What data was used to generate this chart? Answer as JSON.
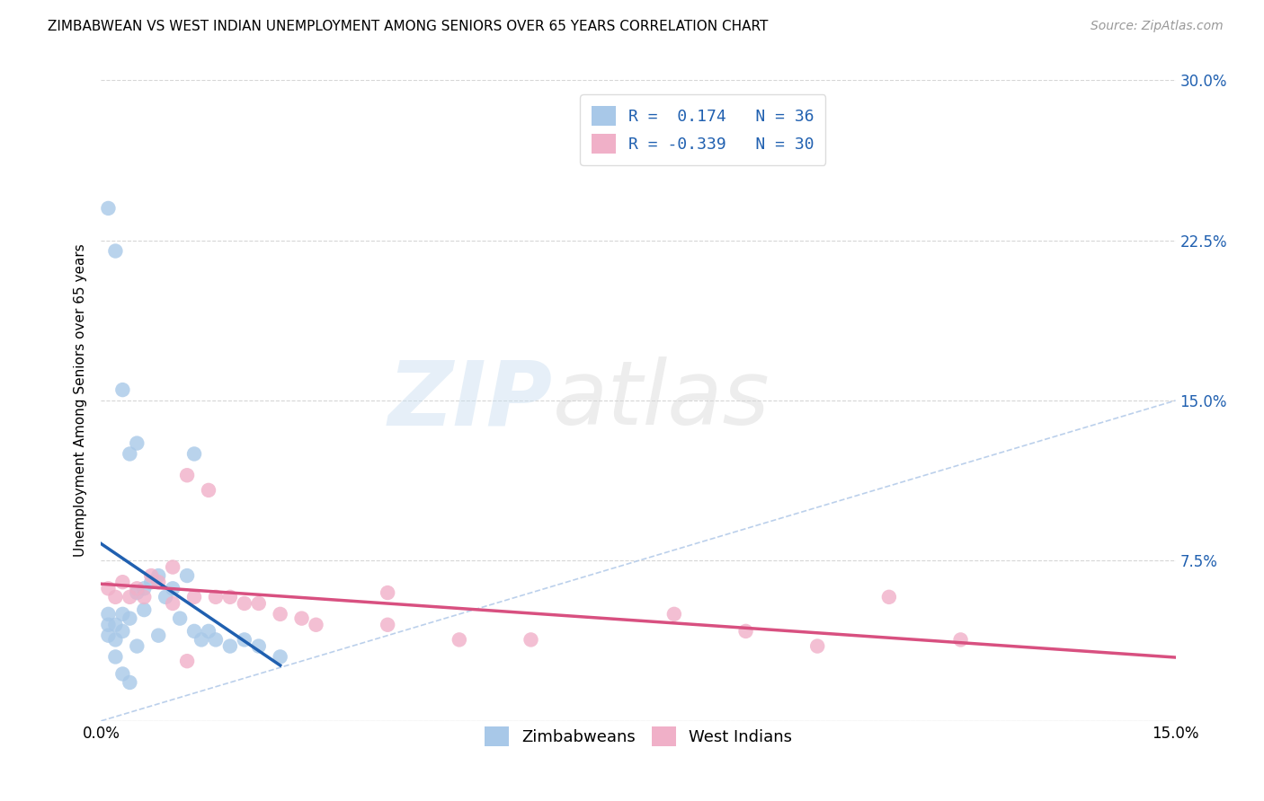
{
  "title": "ZIMBABWEAN VS WEST INDIAN UNEMPLOYMENT AMONG SENIORS OVER 65 YEARS CORRELATION CHART",
  "source": "Source: ZipAtlas.com",
  "ylabel": "Unemployment Among Seniors over 65 years",
  "xlim": [
    0.0,
    0.15
  ],
  "ylim": [
    0.0,
    0.3
  ],
  "xticks": [
    0.0,
    0.05,
    0.1,
    0.15
  ],
  "yticks": [
    0.0,
    0.075,
    0.15,
    0.225,
    0.3
  ],
  "xtick_labels": [
    "0.0%",
    "",
    "",
    "15.0%"
  ],
  "ytick_labels_left": [
    "",
    "",
    "",
    "",
    ""
  ],
  "ytick_labels_right": [
    "",
    "7.5%",
    "15.0%",
    "22.5%",
    "30.0%"
  ],
  "watermark_zip": "ZIP",
  "watermark_atlas": "atlas",
  "zim_color": "#a8c8e8",
  "wi_color": "#f0b0c8",
  "zim_line_color": "#2060b0",
  "wi_line_color": "#d85080",
  "diagonal_color": "#b0c8e8",
  "zim_x": [
    0.001,
    0.001,
    0.001,
    0.002,
    0.002,
    0.002,
    0.003,
    0.003,
    0.003,
    0.004,
    0.004,
    0.005,
    0.005,
    0.006,
    0.006,
    0.007,
    0.008,
    0.008,
    0.009,
    0.01,
    0.011,
    0.012,
    0.013,
    0.014,
    0.015,
    0.016,
    0.018,
    0.02,
    0.022,
    0.025,
    0.001,
    0.002,
    0.003,
    0.004,
    0.005,
    0.013
  ],
  "zim_y": [
    0.05,
    0.045,
    0.04,
    0.045,
    0.038,
    0.03,
    0.05,
    0.042,
    0.022,
    0.048,
    0.018,
    0.06,
    0.035,
    0.062,
    0.052,
    0.065,
    0.068,
    0.04,
    0.058,
    0.062,
    0.048,
    0.068,
    0.042,
    0.038,
    0.042,
    0.038,
    0.035,
    0.038,
    0.035,
    0.03,
    0.24,
    0.22,
    0.155,
    0.125,
    0.13,
    0.125
  ],
  "wi_x": [
    0.001,
    0.002,
    0.003,
    0.004,
    0.005,
    0.006,
    0.007,
    0.008,
    0.01,
    0.012,
    0.013,
    0.015,
    0.016,
    0.018,
    0.02,
    0.022,
    0.025,
    0.028,
    0.03,
    0.04,
    0.05,
    0.06,
    0.08,
    0.09,
    0.1,
    0.11,
    0.12,
    0.04,
    0.01,
    0.012
  ],
  "wi_y": [
    0.062,
    0.058,
    0.065,
    0.058,
    0.062,
    0.058,
    0.068,
    0.065,
    0.072,
    0.115,
    0.058,
    0.108,
    0.058,
    0.058,
    0.055,
    0.055,
    0.05,
    0.048,
    0.045,
    0.045,
    0.038,
    0.038,
    0.05,
    0.042,
    0.035,
    0.058,
    0.038,
    0.06,
    0.055,
    0.028
  ]
}
